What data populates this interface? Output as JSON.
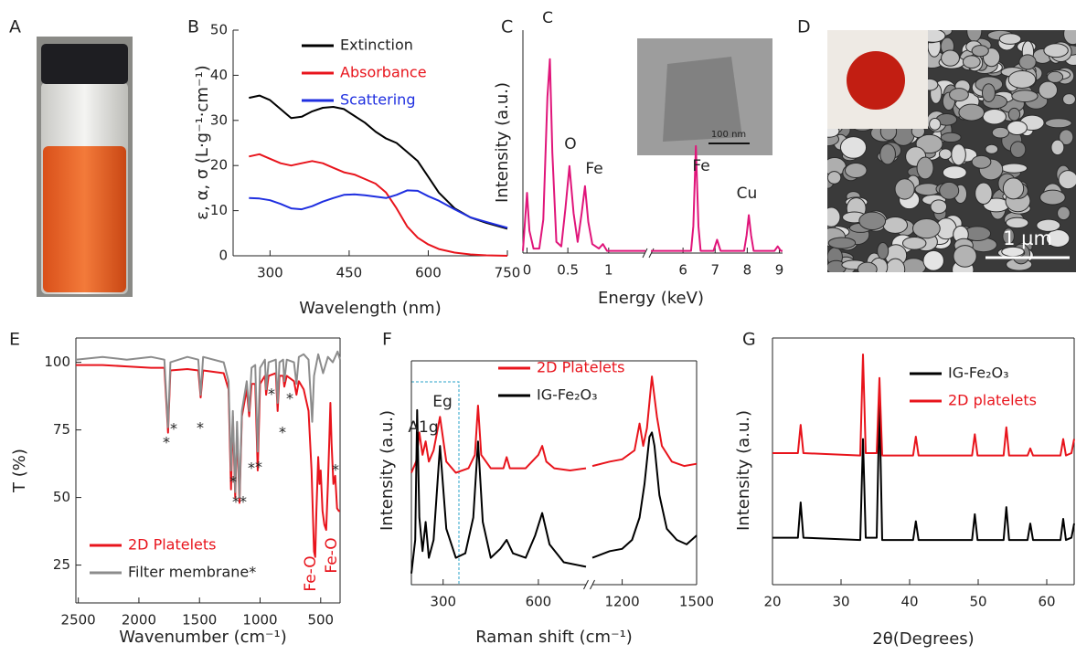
{
  "photos": [
    {
      "label": "A"
    },
    {
      "label": "D",
      "scale_bar": "1 µm"
    }
  ],
  "chart_data": [
    {
      "type": "line",
      "label": "B",
      "xlabel": "Wavelength (nm)",
      "ylabel": "ε, α, σ (L·g⁻¹·cm⁻¹)",
      "xlim": [
        230,
        750
      ],
      "xticks": [
        300,
        450,
        600,
        750
      ],
      "ylim": [
        0,
        50
      ],
      "yticks": [
        0,
        10,
        20,
        30,
        40,
        50
      ],
      "legend": "upper right",
      "series": [
        {
          "name": "Extinction",
          "color": "#000000",
          "x": [
            260,
            280,
            300,
            320,
            340,
            360,
            380,
            400,
            420,
            440,
            460,
            480,
            500,
            520,
            540,
            560,
            580,
            600,
            620,
            650,
            680,
            710,
            750
          ],
          "values": [
            35,
            35.5,
            34.5,
            32.5,
            30.5,
            30.8,
            32,
            32.8,
            33,
            32.5,
            31,
            29.5,
            27.5,
            26,
            25,
            23,
            21,
            17.5,
            14,
            10.5,
            8.5,
            7.3,
            6
          ]
        },
        {
          "name": "Absorbance",
          "color": "#e8141c",
          "x": [
            260,
            280,
            300,
            320,
            340,
            360,
            380,
            400,
            420,
            440,
            460,
            480,
            500,
            520,
            540,
            560,
            580,
            600,
            620,
            650,
            680,
            710,
            750
          ],
          "values": [
            22,
            22.5,
            21.5,
            20.5,
            20,
            20.5,
            21,
            20.5,
            19.5,
            18.5,
            18,
            17,
            16,
            14,
            10.5,
            6.5,
            4,
            2.5,
            1.5,
            0.7,
            0.3,
            0.1,
            0
          ]
        },
        {
          "name": "Scattering",
          "color": "#1f2fe0",
          "x": [
            260,
            280,
            300,
            320,
            340,
            360,
            380,
            400,
            420,
            440,
            460,
            480,
            500,
            520,
            540,
            560,
            580,
            600,
            620,
            650,
            680,
            710,
            750
          ],
          "values": [
            12.8,
            12.7,
            12.3,
            11.5,
            10.5,
            10.3,
            11,
            12,
            12.8,
            13.5,
            13.6,
            13.4,
            13.1,
            12.8,
            13.5,
            14.5,
            14.4,
            13.2,
            12.2,
            10.3,
            8.5,
            7.5,
            6.2
          ]
        }
      ]
    },
    {
      "type": "line",
      "label": "C",
      "xlabel": "Energy (keV)",
      "ylabel": "Intensity (a.u.)",
      "ylim": [
        0,
        100
      ],
      "x_segments": [
        {
          "xlim": [
            -0.05,
            1.45
          ],
          "xticks": [
            0,
            0.5,
            1
          ]
        },
        {
          "xlim": [
            5,
            9.1
          ],
          "xticks": [
            6,
            7,
            8,
            9
          ]
        }
      ],
      "series": [
        {
          "color": "#e0157a",
          "x": [
            -0.05,
            0,
            0.03,
            0.08,
            0.15,
            0.2,
            0.25,
            0.28,
            0.31,
            0.36,
            0.42,
            0.47,
            0.52,
            0.57,
            0.62,
            0.67,
            0.71,
            0.75,
            0.8,
            0.88,
            0.93,
            0.98,
            1.1,
            1.45,
            5.0,
            6.25,
            6.32,
            6.4,
            6.48,
            6.55,
            6.95,
            7.06,
            7.17,
            7.9,
            7.98,
            8.05,
            8.12,
            8.2,
            8.85,
            8.95,
            9.05,
            9.1
          ],
          "values": [
            1,
            27,
            10,
            2,
            2,
            15,
            70,
            87,
            45,
            5,
            3,
            20,
            39,
            18,
            5,
            18,
            30,
            14,
            4,
            2,
            4,
            1,
            1,
            1,
            1,
            1,
            12,
            48,
            12,
            1,
            1,
            6,
            1,
            1,
            8,
            17,
            8,
            1,
            1,
            3,
            1,
            1
          ]
        }
      ],
      "annotations": [
        "C",
        "O",
        "Fe",
        "Fe",
        "Cu"
      ],
      "inset": {
        "scale_bar": "100 nm"
      }
    },
    {
      "type": "line",
      "label": "E",
      "xlabel": "Wavenumber (cm⁻¹)",
      "ylabel": "T (%)",
      "xlim": [
        2520,
        340
      ],
      "xticks": [
        2500,
        2000,
        1500,
        1000,
        500
      ],
      "ylim": [
        11,
        109
      ],
      "yticks": [
        25,
        50,
        75,
        100
      ],
      "legend": "lower left",
      "series": [
        {
          "name": "2D Platelets",
          "color": "#e8141c",
          "x": [
            2520,
            2300,
            2100,
            1900,
            1790,
            1760,
            1740,
            1600,
            1510,
            1490,
            1470,
            1300,
            1260,
            1240,
            1225,
            1205,
            1190,
            1170,
            1150,
            1110,
            1090,
            1070,
            1040,
            1020,
            1000,
            960,
            950,
            930,
            870,
            855,
            840,
            810,
            800,
            780,
            720,
            700,
            680,
            640,
            600,
            575,
            555,
            545,
            535,
            520,
            510,
            500,
            485,
            470,
            455,
            440,
            430,
            420,
            410,
            395,
            380,
            365,
            350,
            340
          ],
          "values": [
            99,
            99,
            98.5,
            98,
            98,
            74,
            97,
            97.5,
            97,
            87,
            97,
            96,
            90,
            53,
            80,
            50,
            75,
            48,
            80,
            90,
            80,
            92,
            92,
            60,
            92,
            95,
            88,
            95,
            96,
            82,
            95,
            95,
            91,
            95,
            93,
            88,
            93,
            90,
            82,
            60,
            30,
            28,
            45,
            65,
            55,
            60,
            45,
            40,
            38,
            55,
            70,
            85,
            70,
            55,
            58,
            46,
            45,
            45
          ]
        },
        {
          "name": "Filter membrane*",
          "color": "#8c8c8c",
          "x": [
            2520,
            2300,
            2100,
            1900,
            1790,
            1760,
            1740,
            1600,
            1510,
            1490,
            1470,
            1300,
            1260,
            1240,
            1225,
            1205,
            1190,
            1170,
            1150,
            1110,
            1090,
            1070,
            1040,
            1020,
            1000,
            960,
            950,
            930,
            870,
            855,
            840,
            810,
            800,
            780,
            720,
            700,
            680,
            640,
            600,
            570,
            555,
            520,
            480,
            440,
            400,
            360,
            340
          ],
          "values": [
            101,
            102,
            101,
            102,
            101,
            76,
            100,
            102,
            101,
            88,
            102,
            100,
            93,
            60,
            82,
            52,
            78,
            50,
            82,
            93,
            82,
            98,
            99,
            67,
            98,
            101,
            90,
            100,
            101,
            85,
            100,
            101,
            93,
            101,
            100,
            92,
            102,
            103,
            101,
            78,
            95,
            103,
            96,
            102,
            100,
            104,
            101
          ]
        }
      ],
      "annotations": [
        "Fe-O",
        "Fe-O"
      ],
      "asterisks": [
        "*",
        "*",
        "*",
        "*",
        "**",
        "*",
        "*",
        "*",
        "*",
        "*",
        "*"
      ]
    },
    {
      "type": "line",
      "label": "F",
      "xlabel": "Raman shift (cm⁻¹)",
      "ylabel": "Intensity (a.u.)",
      "ylim": [
        0,
        100
      ],
      "legend": "upper center",
      "x_segments": [
        {
          "xlim": [
            200,
            750
          ],
          "xticks": [
            300,
            600
          ]
        },
        {
          "xlim": [
            1080,
            1500
          ],
          "xticks": [
            1200,
            1500
          ]
        }
      ],
      "series": [
        {
          "name": "2D Platelets",
          "color": "#e8141c",
          "x": [
            200,
            215,
            225,
            235,
            245,
            255,
            270,
            290,
            310,
            340,
            380,
            400,
            410,
            420,
            450,
            490,
            500,
            510,
            560,
            600,
            612,
            625,
            650,
            700,
            750,
            1080,
            1150,
            1200,
            1250,
            1270,
            1285,
            1300,
            1320,
            1340,
            1360,
            1400,
            1450,
            1500
          ],
          "values": [
            50,
            55,
            68,
            58,
            64,
            55,
            60,
            75,
            55,
            50,
            52,
            58,
            80,
            58,
            52,
            52,
            57,
            52,
            52,
            58,
            62,
            55,
            52,
            51,
            52,
            53,
            55,
            56,
            60,
            72,
            62,
            70,
            93,
            75,
            62,
            55,
            53,
            54
          ]
        },
        {
          "name": "IG-Fe₂O₃",
          "color": "#000000",
          "x": [
            200,
            212,
            218,
            225,
            235,
            245,
            255,
            270,
            290,
            310,
            340,
            370,
            395,
            410,
            425,
            450,
            480,
            500,
            520,
            560,
            590,
            612,
            635,
            680,
            750,
            1080,
            1150,
            1200,
            1240,
            1270,
            1290,
            1310,
            1320,
            1330,
            1350,
            1380,
            1420,
            1460,
            1500
          ],
          "values": [
            5,
            20,
            78,
            30,
            15,
            28,
            12,
            20,
            62,
            25,
            12,
            14,
            30,
            64,
            28,
            12,
            16,
            20,
            14,
            12,
            22,
            32,
            18,
            10,
            8,
            12,
            15,
            16,
            20,
            30,
            45,
            66,
            68,
            62,
            40,
            25,
            20,
            18,
            22
          ]
        }
      ],
      "annotations": [
        "Eg",
        "A1g"
      ]
    },
    {
      "type": "line",
      "label": "G",
      "xlabel": "2θ(Degrees)",
      "ylabel": "Intensity (a.u.)",
      "xlim": [
        20,
        64
      ],
      "xticks": [
        20,
        30,
        40,
        50,
        60
      ],
      "ylim": [
        0,
        105
      ],
      "legend": "upper left",
      "series": [
        {
          "name": "IG-Fe₂O₃",
          "color": "#000000",
          "x": [
            20,
            23.7,
            24.1,
            24.5,
            32.8,
            33.2,
            33.6,
            35.2,
            35.6,
            36,
            40.5,
            40.9,
            41.3,
            49.1,
            49.5,
            49.9,
            53.7,
            54.1,
            54.5,
            57.2,
            57.6,
            58,
            62,
            62.4,
            62.8,
            63.6,
            64
          ],
          "values": [
            20,
            20,
            35,
            20,
            19,
            62,
            20,
            20,
            78,
            19,
            19,
            27,
            19,
            19,
            30,
            19,
            19,
            33,
            19,
            19,
            26,
            19,
            19,
            28,
            19,
            20,
            26
          ]
        },
        {
          "name": "2D platelets",
          "color": "#e8141c",
          "x": [
            20,
            23.7,
            24.1,
            24.5,
            32.8,
            33.2,
            33.6,
            35.2,
            35.6,
            36,
            40.5,
            40.9,
            41.3,
            49.1,
            49.5,
            49.9,
            53.7,
            54.1,
            54.5,
            57.2,
            57.6,
            58,
            62,
            62.4,
            62.8,
            63.6,
            64
          ],
          "values": [
            56,
            56,
            68,
            56,
            55,
            98,
            56,
            56,
            88,
            55,
            55,
            63,
            55,
            55,
            64,
            55,
            55,
            67,
            55,
            55,
            58,
            55,
            55,
            62,
            55,
            56,
            62
          ]
        }
      ]
    }
  ]
}
